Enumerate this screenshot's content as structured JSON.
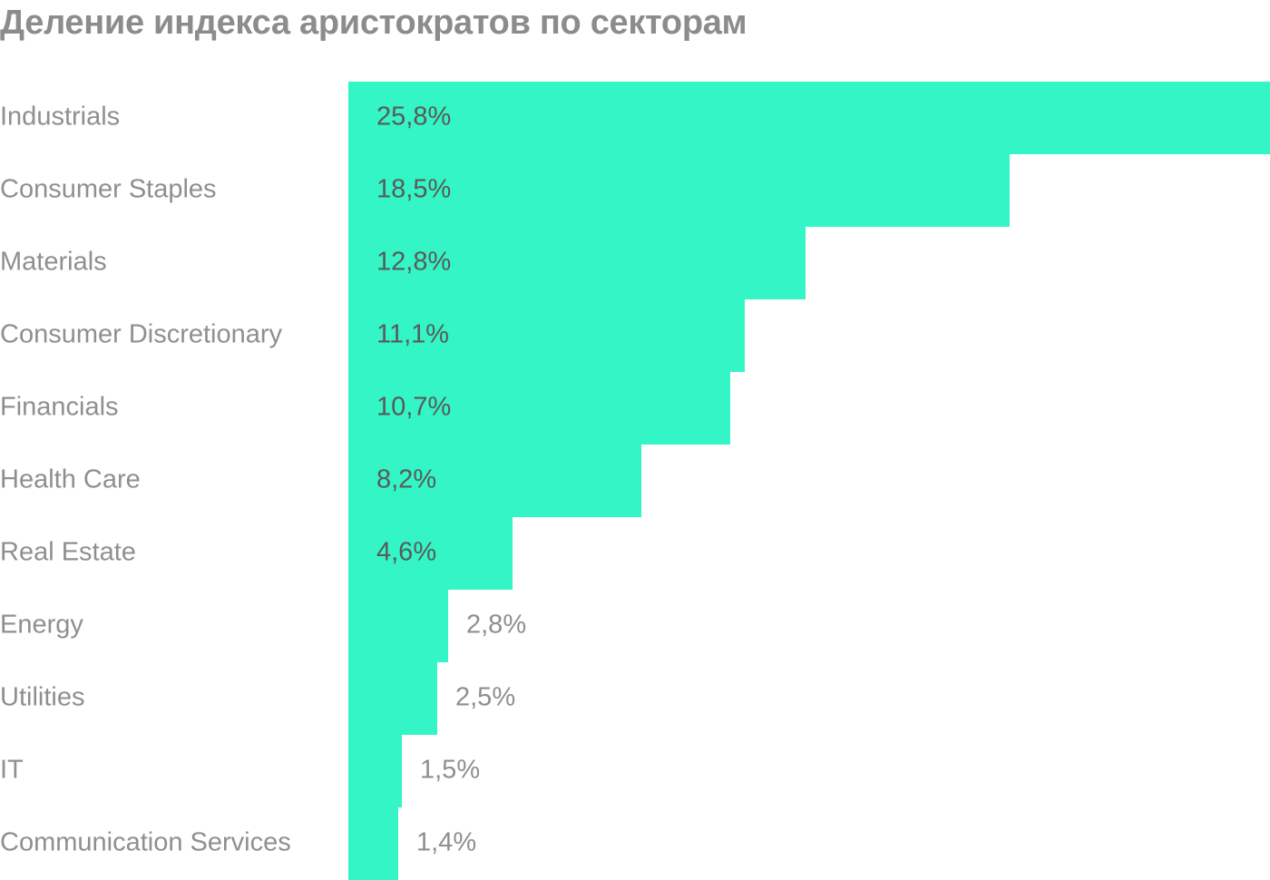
{
  "title": "Деление индекса аристократов по секторам",
  "colors": {
    "bar": "#33f5c5",
    "category_text": "#8f8f8f",
    "value_text_inside": "#5a5a5a",
    "value_text_outside": "#8f8f8f",
    "title_text": "#8c8c8c"
  },
  "chart_data": {
    "type": "bar",
    "orientation": "horizontal",
    "title": "Деление индекса аристократов по секторам",
    "categories": [
      "Industrials",
      "Consumer Staples",
      "Materials",
      "Consumer Discretionary",
      "Financials",
      "Health Care",
      "Real Estate",
      "Energy",
      "Utilities",
      "IT",
      "Communication Services"
    ],
    "values": [
      25.8,
      18.5,
      12.8,
      11.1,
      10.7,
      8.2,
      4.6,
      2.8,
      2.5,
      1.5,
      1.4
    ],
    "value_labels": [
      "25,8%",
      "18,5%",
      "12,8%",
      "11,1%",
      "10,7%",
      "8,2%",
      "4,6%",
      "2,8%",
      "2,5%",
      "1,5%",
      "1,4%"
    ],
    "unit": "%",
    "xlim": [
      0,
      25.8
    ],
    "grid": false,
    "legend": "none",
    "xlabel": "",
    "ylabel": ""
  }
}
